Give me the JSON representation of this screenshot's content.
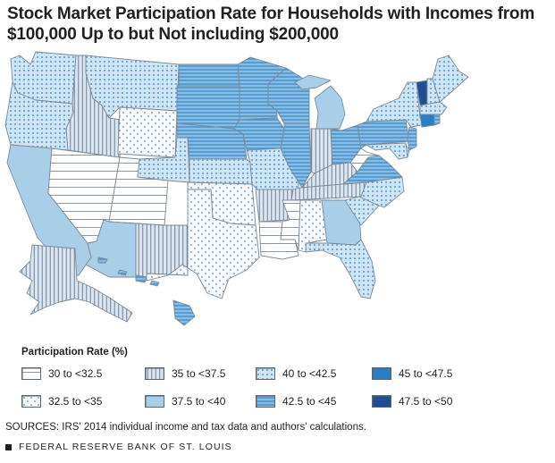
{
  "title": "Stock Market Participation Rate for Households with Incomes from $100,000 Up to but Not including $200,000",
  "legend": {
    "title": "Participation Rate (%)",
    "items": [
      {
        "key": "c30",
        "label": "30 to <32.5"
      },
      {
        "key": "c35",
        "label": "35 to <37.5"
      },
      {
        "key": "c40",
        "label": "40 to <42.5"
      },
      {
        "key": "c45",
        "label": "45 to <47.5"
      },
      {
        "key": "c325",
        "label": "32.5 to <35"
      },
      {
        "key": "c375",
        "label": "37.5 to <40"
      },
      {
        "key": "c425",
        "label": "42.5 to <45"
      },
      {
        "key": "c475",
        "label": "47.5 to <50"
      }
    ]
  },
  "colors": {
    "c30": "#ffffff",
    "c325": "#f6f9fc",
    "c35": "#dbe5ef",
    "c375": "#a9cfe8",
    "c40": "#c9e2f3",
    "c425": "#7fb6df",
    "c45": "#2a7fc4",
    "c475": "#1f4e93",
    "border": "#7d8a96"
  },
  "states": {
    "WA": "c40",
    "OR": "c40",
    "CA": "c375",
    "NV": "c30",
    "ID": "c35",
    "MT": "c40",
    "WY": "c325",
    "UT": "c30",
    "AZ": "c375",
    "CO": "c40",
    "NM": "c35",
    "ND": "c425",
    "SD": "c425",
    "NE": "c425",
    "KS": "c40",
    "OK": "c325",
    "TX": "c325",
    "MN": "c425",
    "IA": "c425",
    "MO": "c40",
    "AR": "c35",
    "LA": "c30",
    "WI": "c425",
    "IL": "c425",
    "MI": "c375",
    "IN": "c35",
    "KY": "c35",
    "TN": "c35",
    "MS": "c30",
    "AL": "c325",
    "OH": "c425",
    "WV": "c30",
    "VA": "c425",
    "NC": "c40",
    "SC": "c40",
    "GA": "c375",
    "FL": "c40",
    "PA": "c425",
    "NY": "c40",
    "VT": "c475",
    "NH": "c40",
    "ME": "c40",
    "MA": "c40",
    "CT": "c45",
    "RI": "c425",
    "NJ": "c425",
    "DE": "c40",
    "MD": "c40",
    "AK": "c35",
    "HI": "c425"
  },
  "sources": "SOURCES: IRS' 2014 individual income and tax data and authors' calculations.",
  "footer": "FEDERAL RESERVE BANK OF ST. LOUIS"
}
